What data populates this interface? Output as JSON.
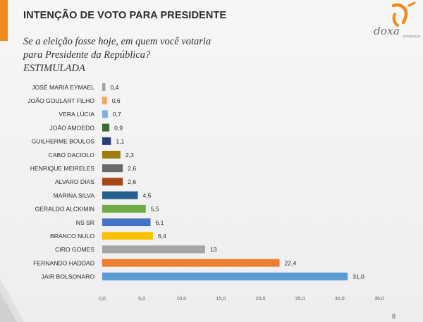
{
  "title": "INTENÇÃO DE VOTO PARA PRESIDENTE",
  "question": "Se a eleição fosse hoje, em quem você votaria para Presidente da República? ESTIMULADA",
  "logo": {
    "word": "doxa",
    "sub": "pesquisa"
  },
  "page_number": "8",
  "colors": {
    "accent": "#f08a1c"
  },
  "chart_data": {
    "type": "bar",
    "orientation": "horizontal",
    "categories": [
      "JOSÉ MARIA EYMAEL",
      "JOÃO GOULART FILHO",
      "VERA LÚCIA",
      "JOÃO AMOEDO",
      "GUILHERME BOULOS",
      "CABO DACIOLO",
      "HENRIQUE MEIRELES",
      "ALVARO DIAS",
      "MARINA SILVA",
      "GERALDO ALCKIMIN",
      "NS SR",
      "BRANCO NULO",
      "CIRO GOMES",
      "FERNANDO HADDAD",
      "JAIR BOLSONARO"
    ],
    "values": [
      0.4,
      0.6,
      0.7,
      0.9,
      1.1,
      2.3,
      2.6,
      2.6,
      4.5,
      5.5,
      6.1,
      6.4,
      13,
      22.4,
      31.0
    ],
    "value_labels": [
      "0,4",
      "0,6",
      "0,7",
      "0,9",
      "1,1",
      "2,3",
      "2,6",
      "2,6",
      "4,5",
      "5,5",
      "6,1",
      "6,4",
      "13",
      "22,4",
      "31,0"
    ],
    "colors": [
      "#a5a5a5",
      "#f4a66a",
      "#7fb1e0",
      "#3d6b2a",
      "#243f78",
      "#9b7c0c",
      "#6a6a6a",
      "#a4481a",
      "#255d8e",
      "#6fac47",
      "#4472c4",
      "#ffc000",
      "#a5a5a5",
      "#ed7d31",
      "#5b9bd5"
    ],
    "xlim": [
      0,
      35
    ],
    "xticks": [
      0,
      5,
      10,
      15,
      20,
      25,
      30,
      35
    ],
    "xtick_labels": [
      "0,0",
      "5,0",
      "10,0",
      "15,0",
      "20,0",
      "25,0",
      "30,0",
      "35,0"
    ],
    "grid": false,
    "legend": "none"
  }
}
